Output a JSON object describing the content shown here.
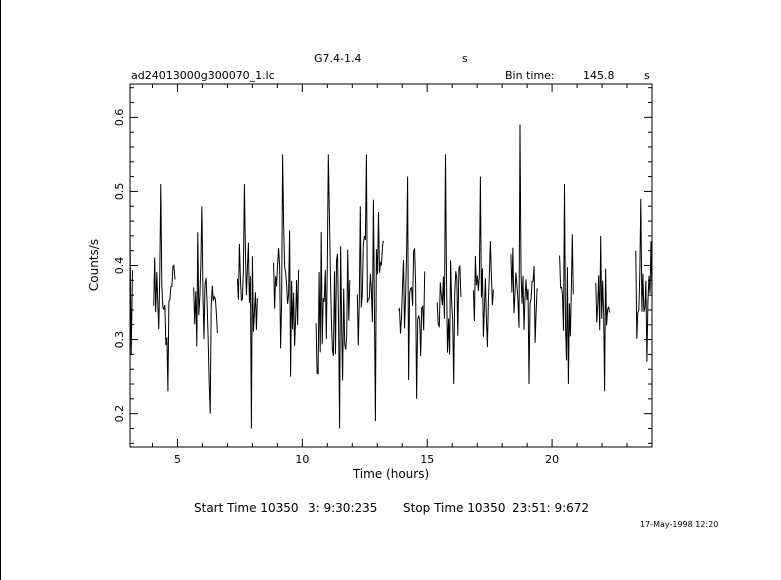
{
  "header": {
    "object_name": "G7.4-1.4",
    "object_unit": "s",
    "filename": "ad24013000g300070_1.lc",
    "bin_time_label": "Bin time:",
    "bin_time_value": "145.8",
    "bin_time_unit": "s"
  },
  "footer": {
    "start_label": "Start Time 10350",
    "start_time": "3: 9:30:235",
    "stop_label": "Stop Time 10350",
    "stop_time": "23:51: 9:672",
    "date_stamp": "17-May-1998 12:20"
  },
  "chart_data": {
    "type": "line",
    "xlabel": "Time (hours)",
    "ylabel": "Counts/s",
    "xlim": [
      3.1,
      24.0
    ],
    "ylim": [
      0.155,
      0.645
    ],
    "xticks": [
      5,
      10,
      15,
      20
    ],
    "xtick_labels": [
      "5",
      "10",
      "15",
      "20"
    ],
    "yticks": [
      0.2,
      0.3,
      0.4,
      0.5,
      0.6
    ],
    "ytick_labels": [
      "0.2",
      "0.3",
      "0.4",
      "0.5",
      "0.6"
    ],
    "grid": false,
    "legend": "none",
    "segments": [
      {
        "t_start": 3.1,
        "t_end": 3.2,
        "mean": 0.37,
        "min": 0.28,
        "max": 0.44
      },
      {
        "t_start": 4.05,
        "t_end": 4.9,
        "mean": 0.36,
        "min": 0.23,
        "max": 0.51
      },
      {
        "t_start": 5.65,
        "t_end": 6.6,
        "mean": 0.35,
        "min": 0.2,
        "max": 0.48
      },
      {
        "t_start": 7.4,
        "t_end": 8.2,
        "mean": 0.37,
        "min": 0.18,
        "max": 0.51
      },
      {
        "t_start": 8.85,
        "t_end": 9.85,
        "mean": 0.37,
        "min": 0.25,
        "max": 0.55
      },
      {
        "t_start": 10.55,
        "t_end": 11.9,
        "mean": 0.35,
        "min": 0.18,
        "max": 0.55
      },
      {
        "t_start": 12.2,
        "t_end": 13.25,
        "mean": 0.37,
        "min": 0.19,
        "max": 0.55
      },
      {
        "t_start": 13.85,
        "t_end": 14.9,
        "mean": 0.35,
        "min": 0.22,
        "max": 0.52
      },
      {
        "t_start": 15.4,
        "t_end": 16.35,
        "mean": 0.37,
        "min": 0.24,
        "max": 0.55
      },
      {
        "t_start": 16.85,
        "t_end": 17.65,
        "mean": 0.37,
        "min": 0.29,
        "max": 0.52
      },
      {
        "t_start": 18.35,
        "t_end": 19.4,
        "mean": 0.36,
        "min": 0.24,
        "max": 0.59
      },
      {
        "t_start": 20.3,
        "t_end": 20.85,
        "mean": 0.36,
        "min": 0.24,
        "max": 0.51
      },
      {
        "t_start": 21.75,
        "t_end": 22.3,
        "mean": 0.35,
        "min": 0.23,
        "max": 0.44
      },
      {
        "t_start": 23.35,
        "t_end": 24.0,
        "mean": 0.37,
        "min": 0.27,
        "max": 0.49
      }
    ]
  }
}
